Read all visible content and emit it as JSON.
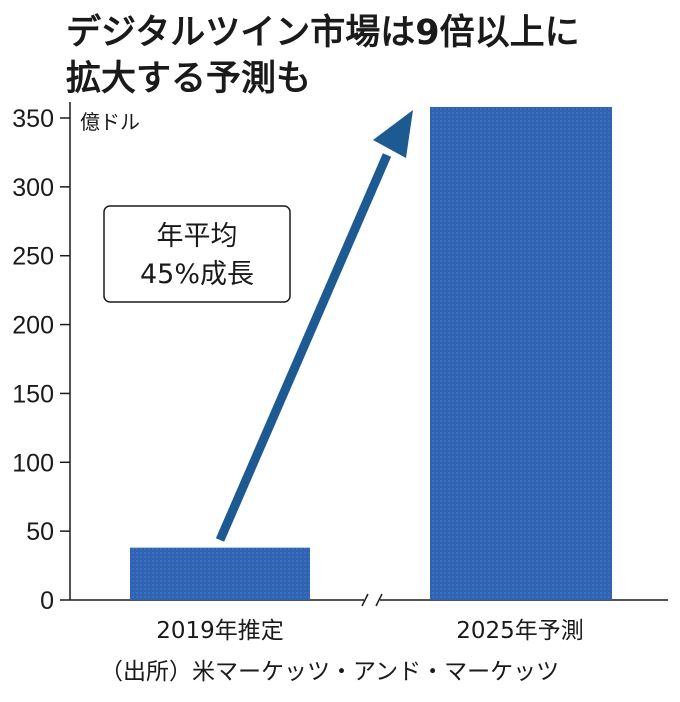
{
  "title_lines": [
    "デジタルツイン市場は9倍以上に",
    "拡大する予測も"
  ],
  "unit": "億ドル",
  "source": "（出所）米マーケッツ・アンド・マーケッツ",
  "annotation": {
    "line1": "年平均",
    "line2": "45%成長"
  },
  "colors": {
    "bar": "#2f63b4",
    "arrow": "#1d5a92",
    "text": "#1a1a1a"
  },
  "chart_data": {
    "type": "bar",
    "categories": [
      "2019年推定",
      "2025年予測"
    ],
    "values": [
      38,
      358
    ],
    "ylim": [
      0,
      350
    ],
    "yticks": [
      0,
      50,
      100,
      150,
      200,
      250,
      300,
      350
    ],
    "ylabel": "億ドル",
    "axis_break": true,
    "grid": false
  }
}
